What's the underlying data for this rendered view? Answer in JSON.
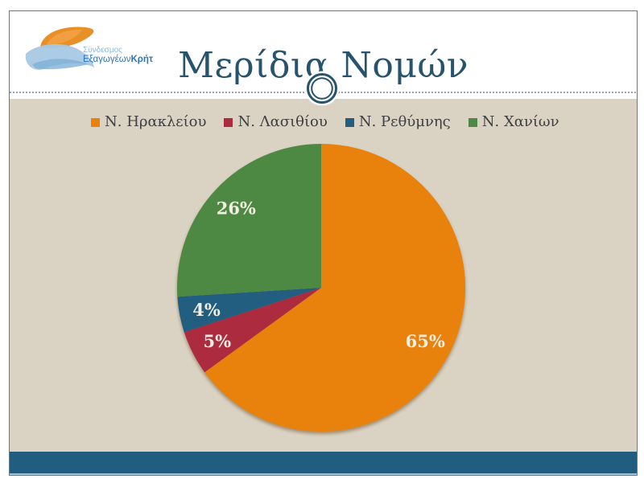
{
  "slide": {
    "title": "Μερίδια Νομών",
    "logo": {
      "line1": "Σύνδεσμος",
      "line2_regular": "Εξαγωγέων",
      "line2_bold": "Κρήτης"
    },
    "colors": {
      "content_background": "#DAD3C4",
      "footer_bar": "#205D7E",
      "title_text": "#27536D",
      "ornament_ring": "#27536D",
      "dashed_line": "#9aa3a9",
      "slide_border": "#6d767d"
    }
  },
  "chart_data": {
    "type": "pie",
    "title": "Μερίδια Νομών",
    "categories": [
      "Ν. Ηρακλείου",
      "Ν. Λασιθίου",
      "Ν. Ρεθύμνης",
      "Ν. Χανίων"
    ],
    "values": [
      65,
      5,
      4,
      26
    ],
    "labels": [
      "65%",
      "5%",
      "4%",
      "26%"
    ],
    "colors": [
      "#E8820D",
      "#AC2B3F",
      "#215E80",
      "#4E8943"
    ],
    "label_color": "#F3EEE2",
    "legend_position": "top",
    "start_angle_deg": 0,
    "direction": "clockwise",
    "label_radius_fraction": 0.81
  }
}
